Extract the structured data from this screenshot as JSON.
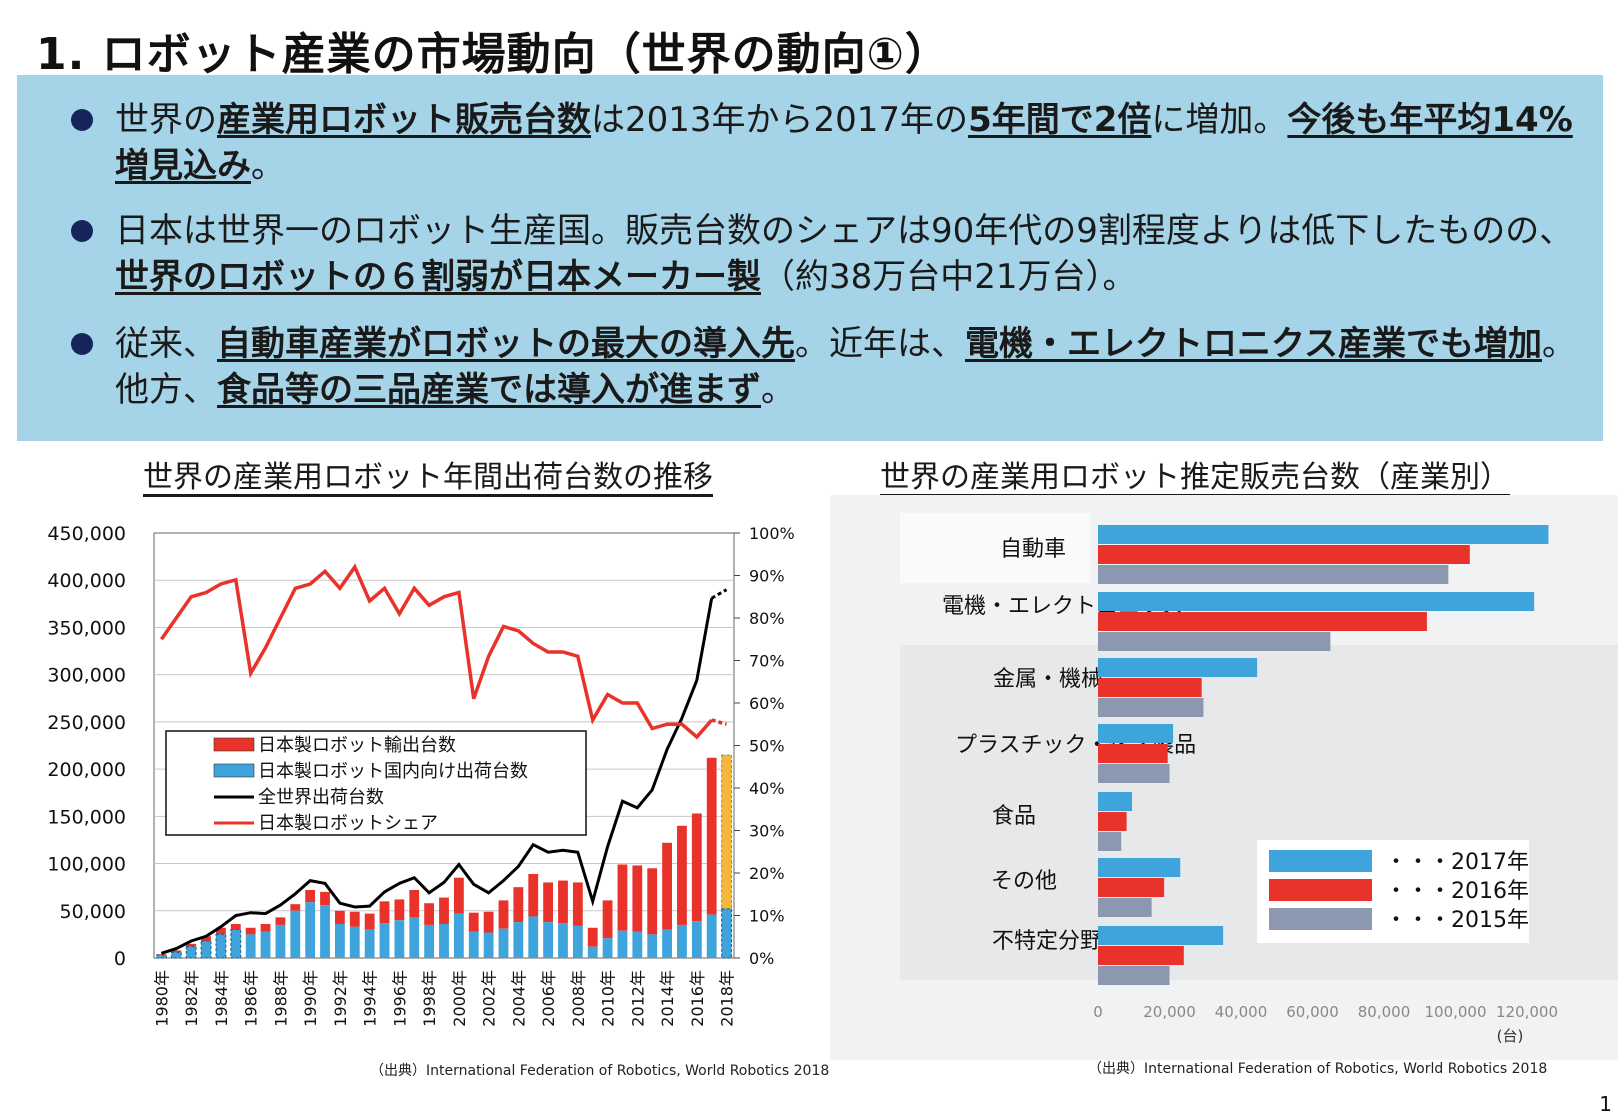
{
  "page": {
    "title": "1. ロボット産業の市場動向（世界の動向①）",
    "page_number": "1"
  },
  "summary": {
    "b1": {
      "t1": "世界の",
      "e1": "産業用ロボット販売台数",
      "t2": "は2013年から2017年の",
      "e2": "5年間で2倍",
      "t3": "に増加。",
      "e3": "今後も年平均14%増見込み",
      "t4": "。"
    },
    "b2": {
      "t1": "日本は世界一のロボット生産国。販売台数のシェアは90年代の9割程度よりは低下したものの、",
      "e1": "世界のロボットの６割弱が日本メーカー製",
      "t2": "（約38万台中21万台）。"
    },
    "b3": {
      "t1": "従来、",
      "e1": "自動車産業がロボットの最大の導入先",
      "t2": "。近年は、",
      "e2": "電機・エレクトロニクス産業でも増加",
      "t3": "。他方、",
      "e3": "食品等の三品産業では導入が進まず",
      "t4": "。"
    }
  },
  "colors": {
    "summary_bg": "#a5d4e8",
    "export": "#e8322a",
    "domestic": "#3fa4dc",
    "world_line": "#000000",
    "share_line": "#e8322a",
    "forecast": "#f6b73c",
    "y2017": "#3fa4dc",
    "y2016": "#e8322a",
    "y2015": "#8c98b0"
  },
  "chart_data": [
    {
      "type": "bar",
      "title": "世界の産業用ロボット年間出荷台数の推移",
      "source": "（出典）International Federation of Robotics, World Robotics 2018",
      "x": [
        1980,
        1981,
        1982,
        1983,
        1984,
        1985,
        1986,
        1987,
        1988,
        1989,
        1990,
        1991,
        1992,
        1993,
        1994,
        1995,
        1996,
        1997,
        1998,
        1999,
        2000,
        2001,
        2002,
        2003,
        2004,
        2005,
        2006,
        2007,
        2008,
        2009,
        2010,
        2011,
        2012,
        2013,
        2014,
        2015,
        2016,
        2017,
        2018
      ],
      "x_tick_labels": [
        "1980年",
        "1982年",
        "1984年",
        "1986年",
        "1988年",
        "1990年",
        "1992年",
        "1994年",
        "1996年",
        "1998年",
        "2000年",
        "2002年",
        "2004年",
        "2006年",
        "2008年",
        "2010年",
        "2012年",
        "2014年",
        "2016年",
        "2018年"
      ],
      "ylim": [
        0,
        450000
      ],
      "y_ticks": [
        "0",
        "50,000",
        "100,000",
        "150,000",
        "200,000",
        "250,000",
        "300,000",
        "350,000",
        "400,000",
        "450,000"
      ],
      "y2lim": [
        0,
        100
      ],
      "y2_ticks": [
        "0%",
        "10%",
        "20%",
        "30%",
        "40%",
        "50%",
        "60%",
        "70%",
        "80%",
        "90%",
        "100%"
      ],
      "legend": [
        "日本製ロボット輸出台数",
        "日本製ロボット国内向け出荷台数",
        "全世界出荷台数",
        "日本製ロボットシェア"
      ],
      "series": [
        {
          "name": "日本製ロボット国内向け出荷台数",
          "values": [
            3000,
            6000,
            12000,
            18000,
            25000,
            30000,
            25000,
            28000,
            35000,
            50000,
            59000,
            56000,
            36000,
            33000,
            30000,
            37000,
            40000,
            43000,
            35000,
            36000,
            47000,
            28000,
            27000,
            31000,
            38000,
            44000,
            38000,
            37000,
            34000,
            12000,
            21000,
            29000,
            28000,
            25000,
            30000,
            35000,
            39000,
            46000,
            52000
          ]
        },
        {
          "name": "日本製ロボット輸出台数",
          "values": [
            1000,
            2000,
            3000,
            5000,
            7000,
            6000,
            7000,
            8000,
            8000,
            7000,
            13000,
            14000,
            14000,
            16000,
            17000,
            23000,
            22000,
            29000,
            23000,
            28000,
            38000,
            20000,
            22000,
            30000,
            37000,
            45000,
            42000,
            45000,
            46000,
            20000,
            40000,
            70000,
            70000,
            70000,
            92000,
            105000,
            114000,
            166000,
            163000
          ]
        },
        {
          "name": "全世界出荷台数",
          "values": [
            5000,
            10000,
            18000,
            23000,
            33000,
            45000,
            48000,
            47000,
            56000,
            68000,
            82000,
            79000,
            58000,
            54000,
            55000,
            70000,
            79000,
            85000,
            69000,
            80000,
            99000,
            78000,
            69000,
            82000,
            97000,
            120000,
            112000,
            114000,
            112000,
            60000,
            118000,
            166000,
            159000,
            178000,
            221000,
            254000,
            294000,
            381000,
            390000
          ]
        },
        {
          "name": "日本製ロボットシェア",
          "unit": "%",
          "values": [
            75,
            80,
            85,
            86,
            88,
            89,
            67,
            73,
            80,
            87,
            88,
            91,
            87,
            92,
            84,
            87,
            81,
            87,
            83,
            85,
            86,
            61,
            71,
            78,
            77,
            74,
            72,
            72,
            71,
            56,
            62,
            60,
            60,
            54,
            55,
            55,
            52,
            56,
            55
          ]
        }
      ]
    },
    {
      "type": "bar",
      "orientation": "horizontal",
      "title": "世界の産業用ロボット推定販売台数（産業別）",
      "source": "（出典）International Federation of Robotics, World Robotics 2018",
      "categories": [
        "自動車",
        "電機・エレクトロニクス",
        "金属・機械",
        "プラスチック・化学製品",
        "食品",
        "その他",
        "不特定分野"
      ],
      "x_ticks": [
        "0",
        "20,000",
        "40,000",
        "60,000",
        "80,000",
        "100,000",
        "120,000"
      ],
      "x_unit": "(台)",
      "xlim": [
        0,
        125000
      ],
      "legend_labels": [
        "・・・2017年",
        "・・・2016年",
        "・・・2015年"
      ],
      "series": [
        {
          "name": "2017年",
          "values": [
            126000,
            122000,
            44500,
            21000,
            9500,
            23000,
            35000
          ]
        },
        {
          "name": "2016年",
          "values": [
            104000,
            92000,
            29000,
            19500,
            8000,
            18500,
            24000
          ]
        },
        {
          "name": "2015年",
          "values": [
            98000,
            65000,
            29500,
            20000,
            6500,
            15000,
            20000
          ]
        }
      ]
    }
  ]
}
